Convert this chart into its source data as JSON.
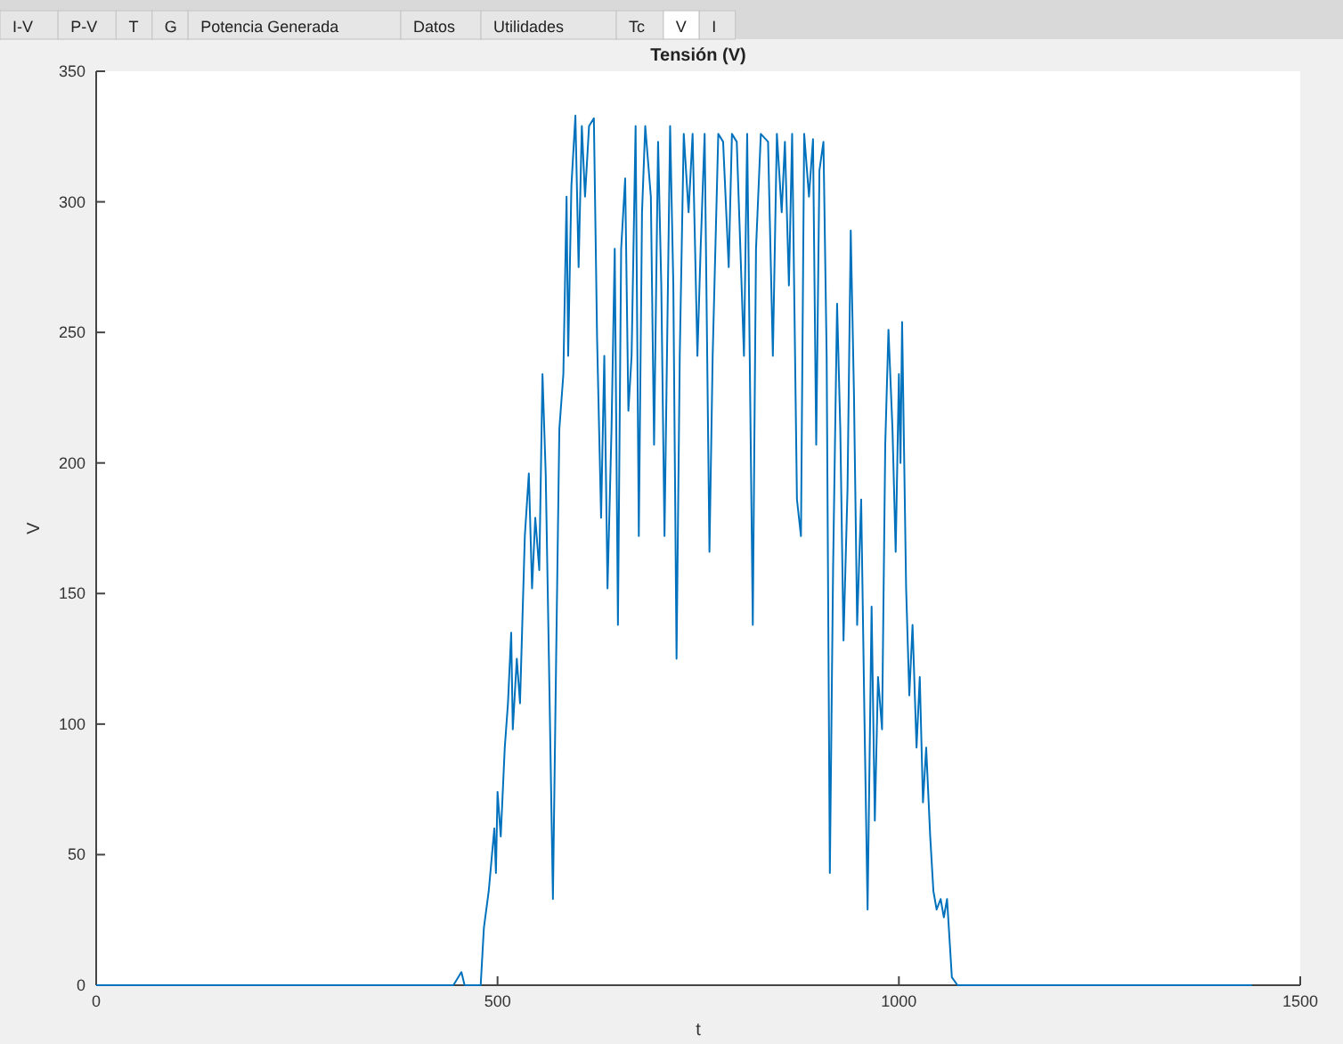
{
  "chart_data": {
    "type": "line",
    "title": "Tensión (V)",
    "xlabel": "t",
    "ylabel": "V",
    "annotations": [
      "I-V",
      "P-V",
      "T",
      "G",
      "Potencia Generada",
      "Datos",
      "Utilidades",
      "Tc",
      "V",
      "I"
    ],
    "xlim": [
      0,
      1500
    ],
    "xticks": [
      0,
      500,
      1000,
      1500
    ],
    "ylim": [
      0,
      350
    ],
    "yticks": [
      0,
      50,
      100,
      150,
      200,
      250,
      300,
      350
    ],
    "series": [
      {
        "color": "#0072bd",
        "x": [
          0,
          445,
          455,
          459,
          479,
          483,
          489,
          496,
          498,
          500,
          504,
          509,
          513,
          517,
          519,
          524,
          528,
          534,
          539,
          543,
          547,
          552,
          556,
          560,
          564,
          569,
          573,
          577,
          582,
          586,
          588,
          592,
          597,
          601,
          605,
          609,
          614,
          620,
          624,
          629,
          633,
          637,
          642,
          646,
          650,
          654,
          659,
          663,
          667,
          672,
          676,
          680,
          684,
          691,
          695,
          700,
          704,
          708,
          715,
          719,
          723,
          727,
          732,
          738,
          743,
          749,
          753,
          758,
          764,
          768,
          775,
          781,
          788,
          792,
          798,
          807,
          811,
          818,
          822,
          828,
          837,
          843,
          848,
          854,
          858,
          863,
          867,
          873,
          878,
          882,
          888,
          893,
          897,
          901,
          906,
          910,
          914,
          918,
          923,
          927,
          931,
          936,
          940,
          944,
          948,
          953,
          957,
          961,
          966,
          970,
          974,
          979,
          983,
          987,
          992,
          996,
          1000,
          1002,
          1004,
          1009,
          1013,
          1017,
          1022,
          1026,
          1030,
          1034,
          1039,
          1043,
          1047,
          1052,
          1056,
          1060,
          1066,
          1073,
          1440
        ],
        "values": [
          0,
          0,
          5,
          0,
          0,
          22,
          36,
          60,
          43,
          74,
          57,
          91,
          108,
          135,
          98,
          125,
          108,
          172,
          196,
          152,
          179,
          159,
          234,
          196,
          125,
          33,
          125,
          213,
          234,
          302,
          241,
          306,
          333,
          275,
          329,
          302,
          329,
          332,
          248,
          179,
          241,
          152,
          213,
          282,
          138,
          282,
          309,
          220,
          241,
          329,
          172,
          296,
          329,
          302,
          207,
          323,
          268,
          172,
          329,
          268,
          125,
          241,
          326,
          296,
          326,
          241,
          282,
          326,
          166,
          241,
          326,
          323,
          275,
          326,
          323,
          241,
          326,
          138,
          282,
          326,
          323,
          241,
          326,
          296,
          323,
          268,
          326,
          186,
          172,
          326,
          302,
          324,
          207,
          312,
          323,
          241,
          43,
          159,
          261,
          213,
          132,
          190,
          289,
          227,
          138,
          186,
          104,
          29,
          145,
          63,
          118,
          98,
          207,
          251,
          213,
          166,
          234,
          200,
          254,
          152,
          111,
          138,
          91,
          118,
          70,
          91,
          57,
          36,
          29,
          33,
          26,
          33,
          3,
          0,
          0
        ]
      }
    ]
  }
}
